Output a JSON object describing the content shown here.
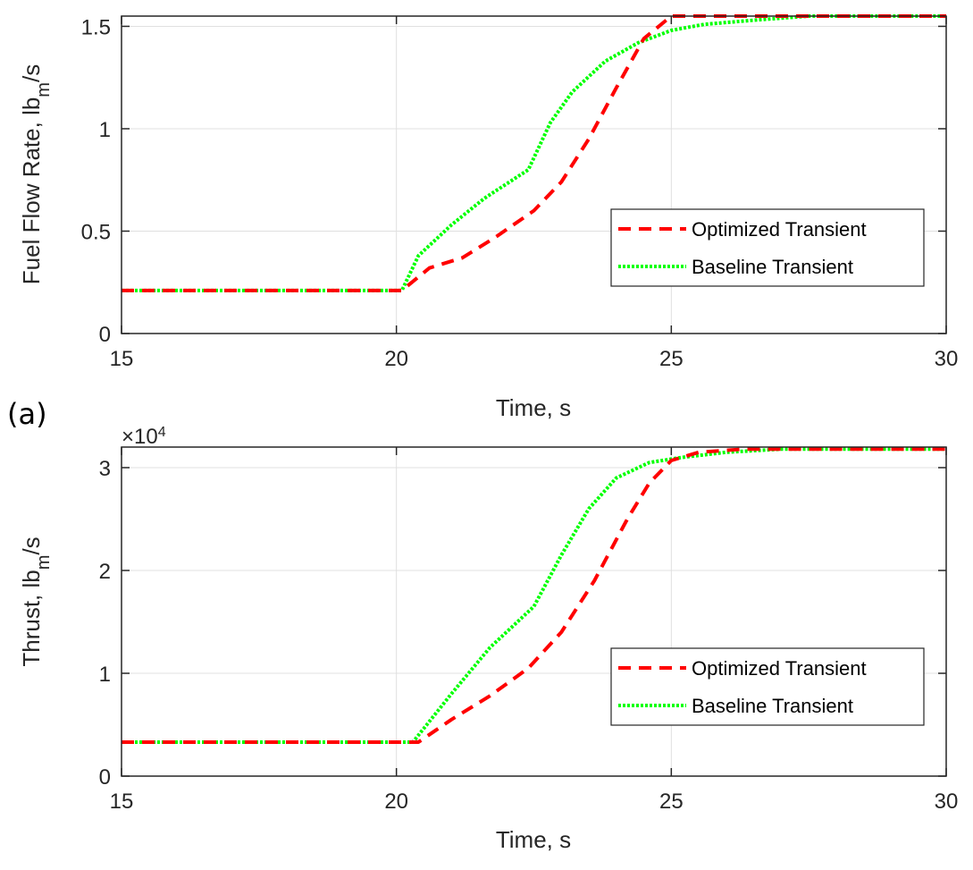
{
  "panel_label": "(a)",
  "colors": {
    "optimized": "#ff0000",
    "baseline": "#00ff00",
    "grid": "#e0e0e0",
    "axis": "#262626"
  },
  "chart_data": [
    {
      "type": "line",
      "title": "",
      "xlabel": "Time, s",
      "ylabel_parts": [
        "Fuel Flow Rate, lb",
        "m",
        "/s"
      ],
      "xlim": [
        15,
        30
      ],
      "ylim": [
        0,
        1.55
      ],
      "xticks": [
        15,
        20,
        25,
        30
      ],
      "yticks": [
        0,
        0.5,
        1,
        1.5
      ],
      "ytick_labels": [
        "0",
        "0.5",
        "1",
        "1.5"
      ],
      "grid": true,
      "legend_position": "lower-right",
      "series": [
        {
          "name": "Optimized Transient",
          "style": "dashed",
          "x": [
            15,
            20.1,
            20.6,
            21.2,
            21.8,
            22.5,
            23.0,
            23.5,
            24.0,
            24.5,
            25.0,
            30
          ],
          "y": [
            0.21,
            0.21,
            0.32,
            0.37,
            0.47,
            0.6,
            0.74,
            0.95,
            1.2,
            1.44,
            1.55,
            1.55
          ]
        },
        {
          "name": "Baseline Transient",
          "style": "dotted",
          "x": [
            15,
            20.1,
            20.4,
            21.0,
            21.6,
            22.0,
            22.4,
            22.8,
            23.2,
            23.8,
            24.4,
            25.0,
            25.6,
            26.5,
            27.5,
            30
          ],
          "y": [
            0.21,
            0.21,
            0.38,
            0.53,
            0.66,
            0.73,
            0.8,
            1.03,
            1.18,
            1.33,
            1.42,
            1.48,
            1.51,
            1.53,
            1.55,
            1.55
          ]
        }
      ]
    },
    {
      "type": "line",
      "title": "",
      "xlabel": "Time, s",
      "ylabel_parts": [
        "Thrust, lb",
        "m",
        "/s"
      ],
      "multiplier": "×10",
      "multiplier_exp": "4",
      "xlim": [
        15,
        30
      ],
      "ylim": [
        0,
        3.2
      ],
      "xticks": [
        15,
        20,
        25,
        30
      ],
      "yticks": [
        0,
        1,
        2,
        3
      ],
      "ytick_labels": [
        "0",
        "1",
        "2",
        "3"
      ],
      "grid": true,
      "legend_position": "lower-right",
      "series": [
        {
          "name": "Optimized Transient",
          "style": "dashed",
          "x": [
            15,
            20.4,
            21.0,
            21.7,
            22.4,
            23.0,
            23.6,
            24.2,
            24.6,
            25.0,
            25.5,
            26.3,
            30
          ],
          "y": [
            0.33,
            0.33,
            0.55,
            0.78,
            1.05,
            1.4,
            1.9,
            2.5,
            2.85,
            3.07,
            3.15,
            3.18,
            3.18
          ]
        },
        {
          "name": "Baseline Transient",
          "style": "dotted",
          "x": [
            15,
            20.3,
            21.0,
            21.7,
            22.5,
            23.0,
            23.5,
            24.0,
            24.6,
            25.2,
            26.0,
            27.0,
            30
          ],
          "y": [
            0.33,
            0.33,
            0.8,
            1.25,
            1.65,
            2.15,
            2.6,
            2.9,
            3.05,
            3.1,
            3.15,
            3.18,
            3.18
          ]
        }
      ]
    }
  ]
}
